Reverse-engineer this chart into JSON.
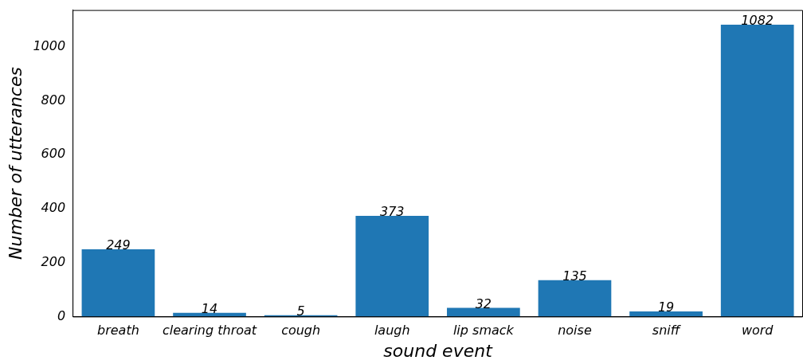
{
  "chart_data": {
    "type": "bar",
    "xlabel": "sound event",
    "ylabel": "Number of utterances",
    "categories": [
      "breath",
      "clearing throat",
      "cough",
      "laugh",
      "lip smack",
      "noise",
      "sniff",
      "word"
    ],
    "values": [
      249,
      14,
      5,
      373,
      32,
      135,
      19,
      1082
    ],
    "color": "#1f77b4",
    "ylim": [
      0,
      1136
    ],
    "yticks": [
      0,
      200,
      400,
      600,
      800,
      1000
    ],
    "data_labels": true,
    "grid": false,
    "legend": false
  }
}
